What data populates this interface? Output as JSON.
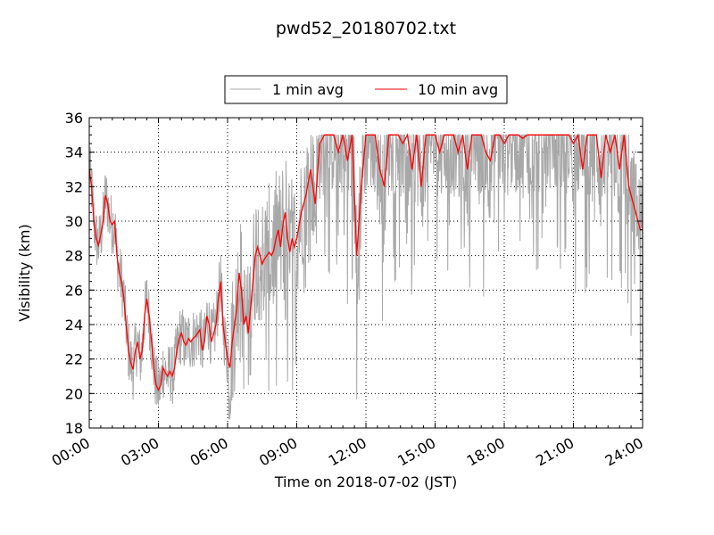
{
  "chart_data": {
    "type": "line",
    "title": "pwd52_20180702.txt",
    "xlabel": "Time on 2018-07-02 (JST)",
    "ylabel": "Visibility (km)",
    "xlim": [
      "00:00",
      "24:00"
    ],
    "ylim": [
      18,
      36
    ],
    "x_ticks": [
      "00:00",
      "03:00",
      "06:00",
      "09:00",
      "12:00",
      "15:00",
      "18:00",
      "21:00",
      "24:00"
    ],
    "y_ticks": [
      "18",
      "20",
      "22",
      "24",
      "26",
      "28",
      "30",
      "32",
      "34",
      "36"
    ],
    "grid": true,
    "legend_position": "top-center, above plot",
    "series": [
      {
        "name": "1 min avg",
        "color": "#a8a8a8",
        "x_hours": [
          0.5,
          0.75,
          1.0,
          1.5,
          2.0,
          2.5,
          3.0,
          3.5,
          4.0,
          4.5,
          5.0,
          5.5,
          6.0,
          6.5,
          7.0,
          7.5,
          8.0,
          8.5,
          9.0,
          9.5,
          10.0,
          10.5,
          11.0,
          11.5,
          12.0,
          12.5,
          13.0,
          13.5,
          14.0,
          14.5,
          15.0,
          15.5,
          16.0,
          16.5,
          17.0,
          17.5,
          18.0,
          18.5,
          19.0,
          19.5,
          20.0,
          20.5,
          21.0,
          21.5,
          22.0,
          22.5,
          23.0,
          23.5,
          23.9
        ],
        "values": [
          26,
          33,
          32,
          28,
          22,
          26,
          19.5,
          22,
          23,
          21,
          25,
          29,
          19,
          30,
          29,
          31,
          33,
          25,
          34,
          33,
          35,
          31,
          35,
          34,
          32,
          35,
          30,
          35,
          34,
          33,
          35,
          31,
          35,
          35,
          34,
          31,
          35,
          35,
          34,
          35,
          30,
          35,
          35,
          34,
          33,
          35,
          33,
          35,
          30
        ]
      },
      {
        "name": "10 min avg",
        "color": "#ff0000",
        "x_hours": [
          0.0,
          0.1,
          0.2,
          0.3,
          0.4,
          0.5,
          0.6,
          0.7,
          0.8,
          0.9,
          1.0,
          1.1,
          1.2,
          1.3,
          1.4,
          1.5,
          1.6,
          1.7,
          1.8,
          1.9,
          2.0,
          2.1,
          2.2,
          2.3,
          2.4,
          2.5,
          2.6,
          2.7,
          2.8,
          2.9,
          3.0,
          3.1,
          3.2,
          3.3,
          3.4,
          3.5,
          3.6,
          3.7,
          3.8,
          3.9,
          4.0,
          4.1,
          4.2,
          4.3,
          4.4,
          4.5,
          4.6,
          4.7,
          4.8,
          4.9,
          5.0,
          5.1,
          5.2,
          5.3,
          5.4,
          5.5,
          5.6,
          5.7,
          5.8,
          5.9,
          6.0,
          6.1,
          6.2,
          6.3,
          6.4,
          6.5,
          6.6,
          6.7,
          6.8,
          6.9,
          7.0,
          7.1,
          7.2,
          7.3,
          7.4,
          7.5,
          7.6,
          7.7,
          7.8,
          7.9,
          8.0,
          8.1,
          8.2,
          8.3,
          8.4,
          8.5,
          8.6,
          8.7,
          8.8,
          8.9,
          9.0,
          9.2,
          9.4,
          9.6,
          9.8,
          10.0,
          10.2,
          10.4,
          10.6,
          10.8,
          11.0,
          11.2,
          11.4,
          11.6,
          11.8,
          12.0,
          12.2,
          12.4,
          12.6,
          12.8,
          13.0,
          13.2,
          13.4,
          13.6,
          13.8,
          14.0,
          14.2,
          14.4,
          14.6,
          14.8,
          15.0,
          15.2,
          15.4,
          15.6,
          15.8,
          16.0,
          16.2,
          16.4,
          16.6,
          16.8,
          17.0,
          17.2,
          17.4,
          17.6,
          17.8,
          18.0,
          18.2,
          18.4,
          18.6,
          18.8,
          19.0,
          19.2,
          19.4,
          19.6,
          19.8,
          20.0,
          20.2,
          20.4,
          20.6,
          20.8,
          21.0,
          21.2,
          21.4,
          21.6,
          21.8,
          22.0,
          22.2,
          22.4,
          22.6,
          22.8,
          23.0,
          23.2,
          23.4,
          23.6,
          23.8,
          23.9,
          24.0
        ],
        "values": [
          33,
          32,
          30,
          29,
          28.6,
          29.2,
          30,
          31.5,
          31,
          30,
          29.8,
          30,
          28,
          27,
          26.5,
          25.5,
          24,
          22.5,
          21.8,
          21.4,
          22.5,
          23,
          22,
          22.5,
          24.5,
          25.5,
          24.5,
          23,
          21.5,
          20.5,
          20.2,
          20.5,
          21.5,
          21.2,
          21,
          21.3,
          21,
          21.5,
          22.5,
          23.2,
          23.5,
          23,
          22.8,
          23.2,
          23,
          23.2,
          23.3,
          23.5,
          23.7,
          22.5,
          23,
          24.5,
          24,
          23,
          23.5,
          24,
          25.5,
          26.5,
          24,
          23,
          22,
          21.5,
          23,
          24,
          25,
          27,
          26,
          24,
          24.5,
          23.5,
          25,
          26.5,
          28,
          28.5,
          28,
          27.5,
          27.8,
          28,
          28.2,
          28,
          28.3,
          29,
          29.5,
          28.5,
          29.8,
          30.5,
          29,
          28.2,
          29,
          28.5,
          29,
          30.5,
          31.5,
          33,
          31,
          34.5,
          35,
          35,
          35,
          34,
          35,
          33.5,
          35,
          28,
          32,
          35,
          35,
          35,
          33,
          32,
          35,
          35,
          35,
          34.5,
          35,
          33,
          35,
          32,
          35,
          35,
          35,
          34,
          35,
          35,
          35,
          34,
          35,
          33,
          35,
          35,
          35,
          34,
          33.5,
          35,
          35,
          34.5,
          35,
          35,
          35,
          34.8,
          35,
          35,
          35,
          35,
          35,
          35,
          35,
          35,
          35,
          35,
          34.5,
          35,
          33,
          35,
          35,
          35,
          32.5,
          35,
          34,
          35,
          33,
          35,
          32,
          31,
          30,
          29.5,
          29.5
        ]
      }
    ]
  }
}
